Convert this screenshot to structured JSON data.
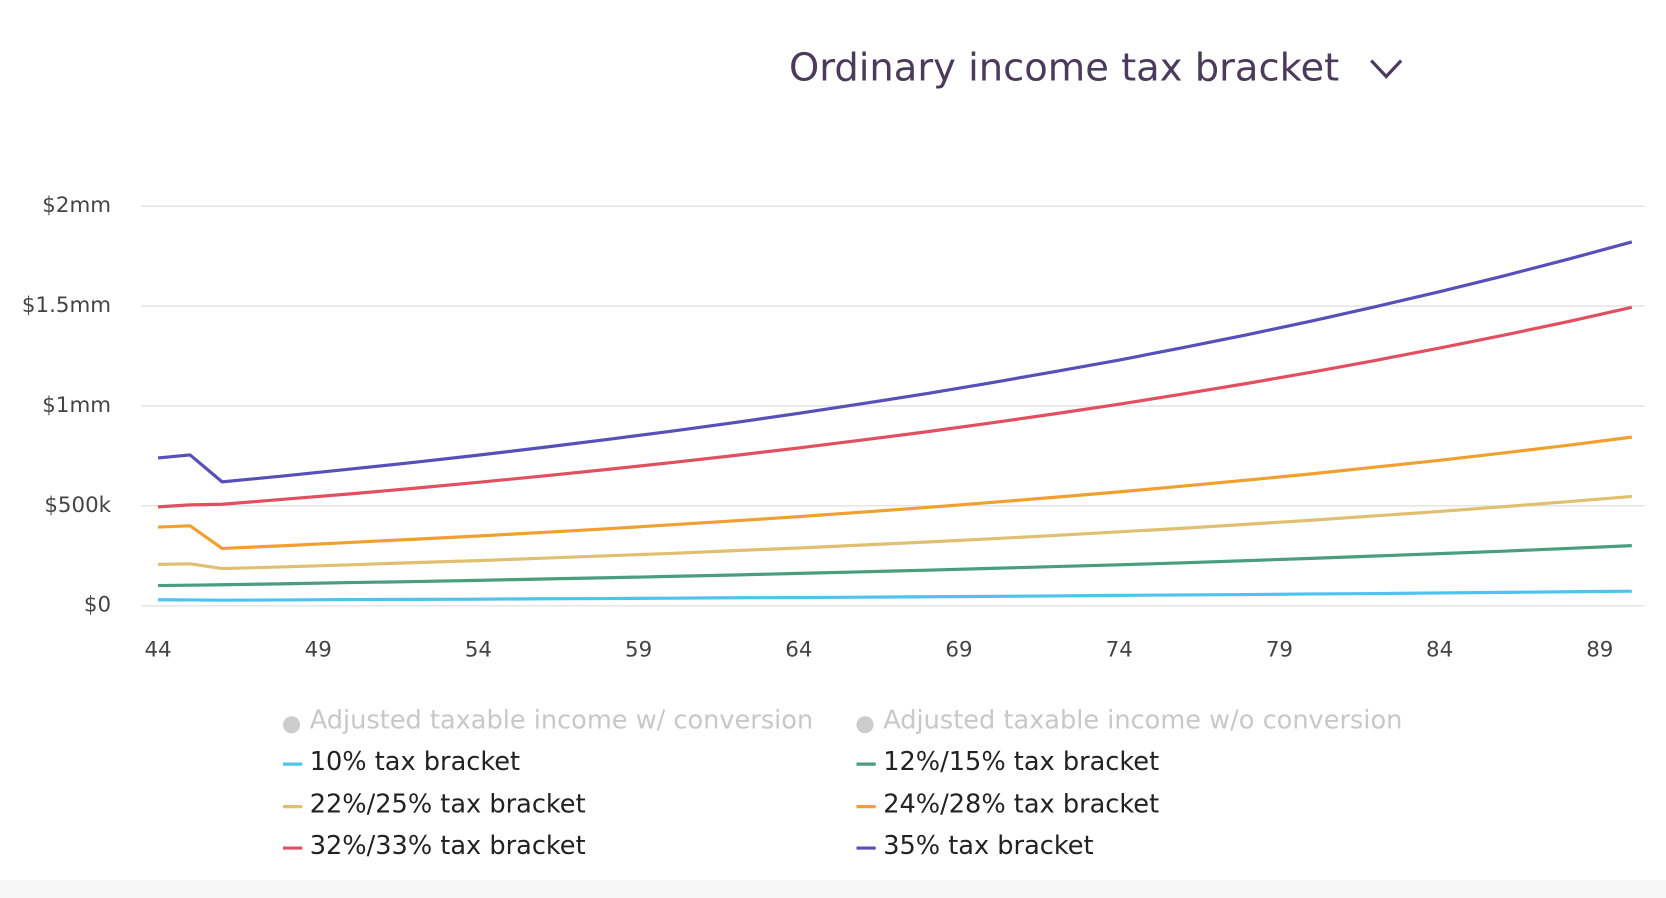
{
  "chart_data": {
    "type": "line",
    "title": "Ordinary income tax bracket",
    "x": [
      44,
      45,
      46,
      48,
      50,
      52,
      54,
      56,
      58,
      60,
      62,
      64,
      66,
      68,
      70,
      72,
      74,
      76,
      78,
      80,
      82,
      84,
      86,
      88,
      90
    ],
    "xlim": [
      44,
      90
    ],
    "xticks": [
      44,
      49,
      54,
      59,
      64,
      69,
      74,
      79,
      84,
      89
    ],
    "ylim": [
      0,
      2000000
    ],
    "yticks": [
      {
        "value": 0,
        "label": "$0"
      },
      {
        "value": 500000,
        "label": "$500k"
      },
      {
        "value": 1000000,
        "label": "$1mm"
      },
      {
        "value": 1500000,
        "label": "$1.5mm"
      },
      {
        "value": 2000000,
        "label": "$2mm"
      }
    ],
    "grid": true,
    "hidden_series": [
      {
        "name": "Adjusted taxable income w/ conversion",
        "color": "#cccccc"
      },
      {
        "name": "Adjusted taxable income w/o conversion",
        "color": "#cccccc"
      }
    ],
    "series": [
      {
        "name": "10% tax bracket",
        "color": "#4fc3f0",
        "values": [
          30000,
          29000,
          28000,
          29000,
          31000,
          32000,
          33000,
          35000,
          36000,
          38000,
          40000,
          41000,
          43000,
          45000,
          47000,
          49000,
          52000,
          54000,
          56000,
          59000,
          61000,
          64000,
          67000,
          70000,
          73000
        ]
      },
      {
        "name": "12%/15% tax bracket",
        "color": "#4a9e7f",
        "values": [
          101000,
          103000,
          105000,
          110000,
          116000,
          121000,
          127000,
          134000,
          140000,
          147000,
          154000,
          162000,
          170000,
          178000,
          187000,
          196000,
          205000,
          215000,
          226000,
          237000,
          249000,
          261000,
          273000,
          287000,
          301000
        ]
      },
      {
        "name": "22%/25% tax bracket",
        "color": "#e0c070",
        "values": [
          207000,
          210000,
          186000,
          195000,
          205000,
          216000,
          226000,
          238000,
          250000,
          262000,
          276000,
          289000,
          304000,
          319000,
          335000,
          352000,
          370000,
          388000,
          408000,
          428000,
          450000,
          472000,
          496000,
          521000,
          547000
        ]
      },
      {
        "name": "24%/28% tax bracket",
        "color": "#f0a030",
        "values": [
          394000,
          400000,
          287000,
          301000,
          317000,
          333000,
          349000,
          367000,
          385000,
          405000,
          425000,
          446000,
          469000,
          492000,
          517000,
          543000,
          570000,
          599000,
          629000,
          660000,
          694000,
          728000,
          765000,
          803000,
          844000
        ]
      },
      {
        "name": "32%/33% tax bracket",
        "color": "#e05060",
        "values": [
          495000,
          505000,
          508000,
          534000,
          560000,
          588000,
          618000,
          649000,
          682000,
          716000,
          752000,
          790000,
          830000,
          871000,
          915000,
          961000,
          1009000,
          1060000,
          1113000,
          1169000,
          1228000,
          1290000,
          1354000,
          1422000,
          1494000
        ]
      },
      {
        "name": "35% tax bracket",
        "color": "#5850b8",
        "values": [
          740000,
          755000,
          620000,
          651000,
          684000,
          718000,
          754000,
          792000,
          832000,
          873000,
          917000,
          963000,
          1012000,
          1062000,
          1116000,
          1172000,
          1230000,
          1292000,
          1357000,
          1425000,
          1497000,
          1572000,
          1651000,
          1734000,
          1821000
        ]
      }
    ]
  }
}
